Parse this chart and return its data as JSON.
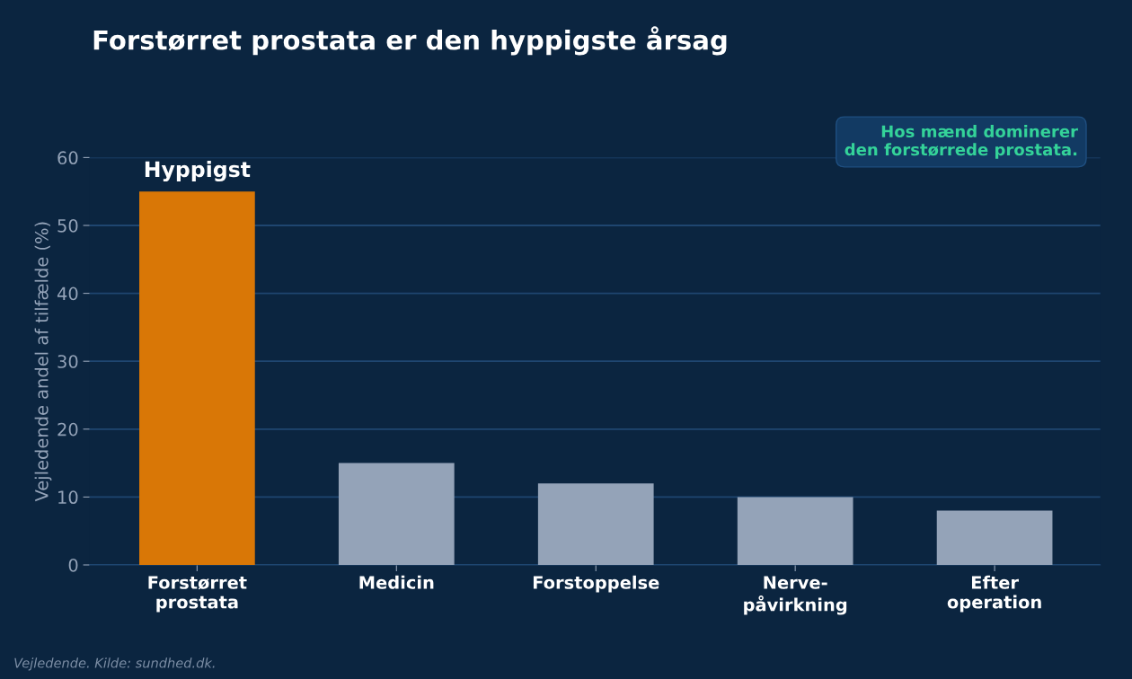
{
  "chart_data": {
    "type": "bar",
    "title": "Forstørret prostata er den hyppigste årsag",
    "ylabel": "Vejledende andel af tilfælde (%)",
    "categories": [
      "Forstørret\nprostata",
      "Medicin",
      "Forstoppelse",
      "Nerve-\npåvirkning",
      "Efter\noperation"
    ],
    "values": [
      55,
      15,
      12,
      10,
      8
    ],
    "colors": [
      "#d97706",
      "#94a3b8",
      "#94a3b8",
      "#94a3b8",
      "#94a3b8"
    ],
    "ylim": [
      0,
      60
    ],
    "yticks": [
      0,
      10,
      20,
      30,
      40,
      50,
      60
    ],
    "grid": "y",
    "legend": false,
    "annotations": [
      {
        "text": "Hyppigst",
        "x": "Forstørret\nprostata",
        "y": 55
      },
      "Hos mænd dominerer\nden forstørrede prostata.",
      "Vejledende. Kilde: sundhed.dk."
    ]
  }
}
